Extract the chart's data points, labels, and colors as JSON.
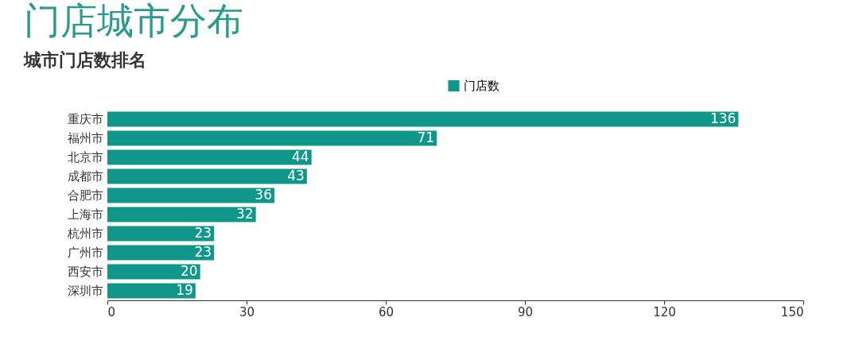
{
  "chart_data": {
    "type": "bar",
    "orientation": "horizontal",
    "title": "门店城市分布",
    "subtitle": "城市门店数排名",
    "categories": [
      "重庆市",
      "福州市",
      "北京市",
      "成都市",
      "合肥市",
      "上海市",
      "杭州市",
      "广州市",
      "西安市",
      "深圳市"
    ],
    "series": [
      {
        "name": "门店数",
        "color": "#11968a",
        "values": [
          136,
          71,
          44,
          43,
          36,
          32,
          23,
          23,
          20,
          19
        ]
      }
    ],
    "xlim": [
      0,
      150
    ],
    "xticks": [
      0,
      30,
      60,
      90,
      120,
      150
    ],
    "data_labels": true,
    "legend": "top",
    "grid": false
  }
}
